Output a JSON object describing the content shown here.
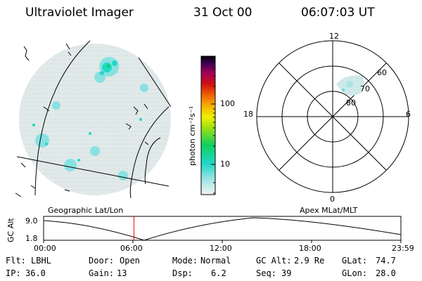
{
  "header": {
    "title": "Ultraviolet Imager",
    "date": "31 Oct 00",
    "time": "06:07:03 UT"
  },
  "colorbar": {
    "label": "photon cm⁻²s⁻¹",
    "ticks": [
      "100",
      "10"
    ]
  },
  "polar": {
    "labels": {
      "top": "12",
      "bottom": "0",
      "left": "18",
      "right": "6"
    },
    "lat_labels": [
      "60",
      "70",
      "80"
    ]
  },
  "projections": {
    "left": "Geographic Lat/Lon",
    "right": "Apex MLat/MLT"
  },
  "altitude_plot": {
    "axis_label": "GC Alt",
    "y_max": "9.0",
    "y_min": "1.8",
    "x_ticks": [
      "00:00",
      "06:00",
      "12:00",
      "18:00",
      "23:59"
    ],
    "current_time_fraction": 0.2528,
    "curve_color": "#000000",
    "marker_color": "#ff0000"
  },
  "status": {
    "row1": [
      {
        "label": "Flt:",
        "value": "LBHL"
      },
      {
        "label": "Door:",
        "value": "Open"
      },
      {
        "label": "Mode:",
        "value": "Normal"
      },
      {
        "label": "GC Alt:",
        "value": "2.9 Re"
      },
      {
        "label": "GLat:",
        "value": "74.7"
      }
    ],
    "row2": [
      {
        "label": "IP:",
        "value": "36.0"
      },
      {
        "label": "Gain:",
        "value": "13"
      },
      {
        "label": "Dsp:",
        "value": "6.2"
      },
      {
        "label": "Seq:",
        "value": "39"
      },
      {
        "label": "GLon:",
        "value": "28.0"
      }
    ]
  }
}
